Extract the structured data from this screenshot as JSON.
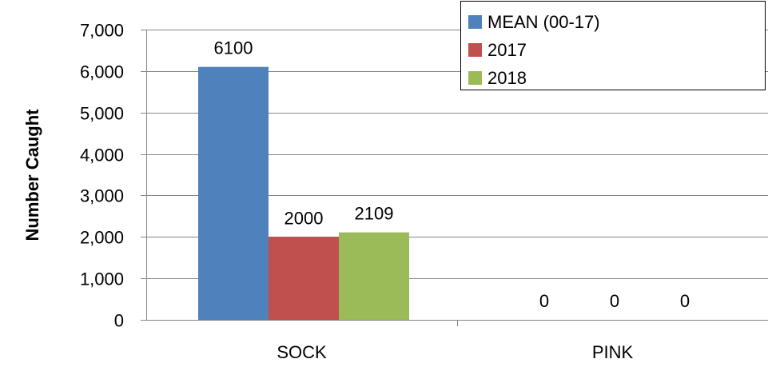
{
  "chart_data": {
    "type": "bar",
    "categories": [
      "SOCK",
      "PINK"
    ],
    "series": [
      {
        "name": "MEAN (00-17)",
        "values": [
          6100,
          0
        ],
        "color": "#4F81BD"
      },
      {
        "name": "2017",
        "values": [
          2000,
          0
        ],
        "color": "#C0504D"
      },
      {
        "name": "2018",
        "values": [
          2109,
          0
        ],
        "color": "#9BBB59"
      }
    ],
    "data_labels": [
      [
        "6100",
        "0"
      ],
      [
        "2000",
        "0"
      ],
      [
        "2109",
        "0"
      ]
    ],
    "ylabel": "Number Caught",
    "xlabel": "",
    "ylim": [
      0,
      7000
    ],
    "yticks": [
      0,
      1000,
      2000,
      3000,
      4000,
      5000,
      6000,
      7000
    ],
    "ytick_labels": [
      "0",
      "1,000",
      "2,000",
      "3,000",
      "4,000",
      "5,000",
      "6,000",
      "7,000"
    ],
    "grid": "horizontal",
    "legend_position": "top-right",
    "gridline_color": "#868686",
    "axis_color": "#868686"
  }
}
